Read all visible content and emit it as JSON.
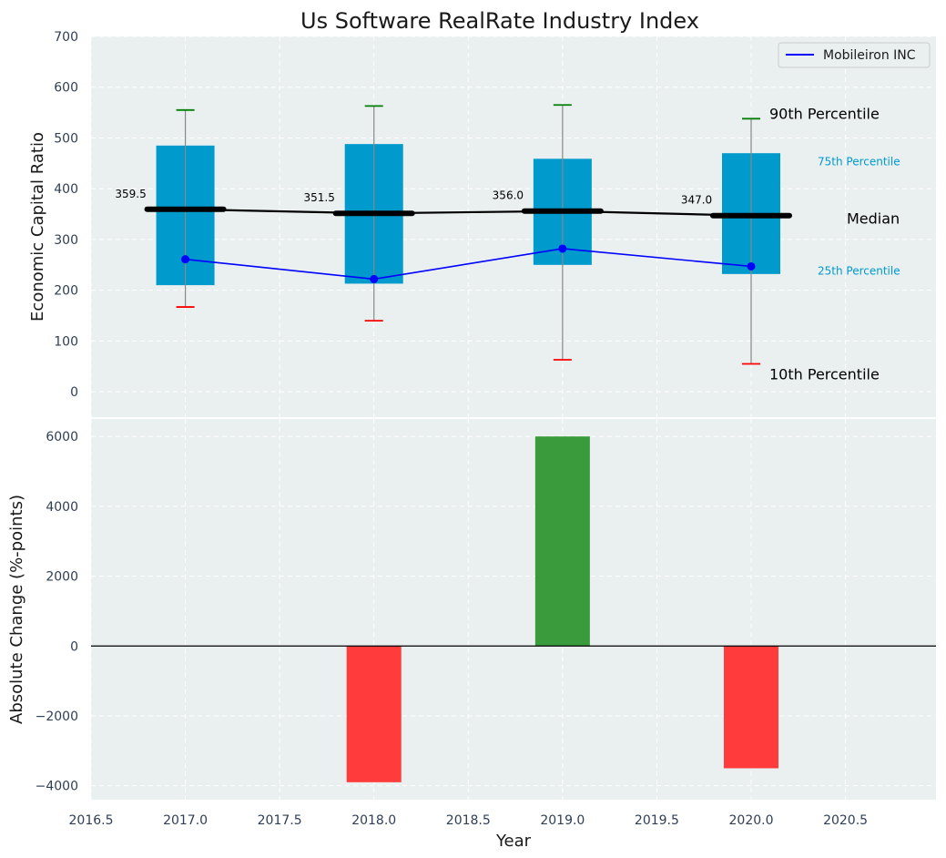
{
  "chart_data": [
    {
      "type": "box",
      "title": "Us Software RealRate Industry Index",
      "ylabel": "Economic Capital Ratio",
      "ylim": [
        -50,
        700
      ],
      "yticks": [
        0,
        100,
        200,
        300,
        400,
        500,
        600,
        700
      ],
      "grid": true,
      "legend_position": "top-right",
      "legend": [
        "Mobileiron INC"
      ],
      "colors": {
        "box": "#009acd",
        "median": "#000000",
        "company": "#0000ff",
        "p90_cap": "#008000",
        "p10_cap": "#ff0000",
        "panel_bg": "#eaeff0"
      },
      "years": [
        2017,
        2018,
        2019,
        2020
      ],
      "p10": [
        167,
        140,
        63,
        55
      ],
      "p25": [
        210,
        213,
        250,
        232
      ],
      "median": [
        359.5,
        351.5,
        356.0,
        347.0
      ],
      "median_labels": [
        "359.5",
        "351.5",
        "356.0",
        "347.0"
      ],
      "p75": [
        485,
        488,
        459,
        470
      ],
      "p90": [
        555,
        563,
        565,
        538
      ],
      "company": {
        "name": "Mobileiron INC",
        "values": [
          261,
          222,
          282,
          247
        ]
      },
      "annotations": {
        "p90": "90th Percentile",
        "p75": "75th Percentile",
        "median": "Median",
        "p25": "25th Percentile",
        "p10": "10th Percentile"
      }
    },
    {
      "type": "bar",
      "xlabel": "Year",
      "ylabel": "Absolute Change (%-points)",
      "xlim": [
        2016.5,
        2020.98
      ],
      "xticks": [
        2016.5,
        2017.0,
        2017.5,
        2018.0,
        2018.5,
        2019.0,
        2019.5,
        2020.0,
        2020.5
      ],
      "xtick_labels": [
        "2016.5",
        "2017.0",
        "2017.5",
        "2018.0",
        "2018.5",
        "2019.0",
        "2019.5",
        "2020.0",
        "2020.5"
      ],
      "ylim": [
        -4400,
        6500
      ],
      "yticks": [
        -4000,
        -2000,
        0,
        2000,
        4000,
        6000
      ],
      "ytick_labels": [
        "−4000",
        "−2000",
        "0",
        "2000",
        "4000",
        "6000"
      ],
      "x": [
        2018,
        2019,
        2020
      ],
      "values": [
        -3900,
        6000,
        -3500
      ],
      "colors": {
        "positive": "#3a9b3c",
        "negative": "#ff3b3b"
      }
    }
  ]
}
